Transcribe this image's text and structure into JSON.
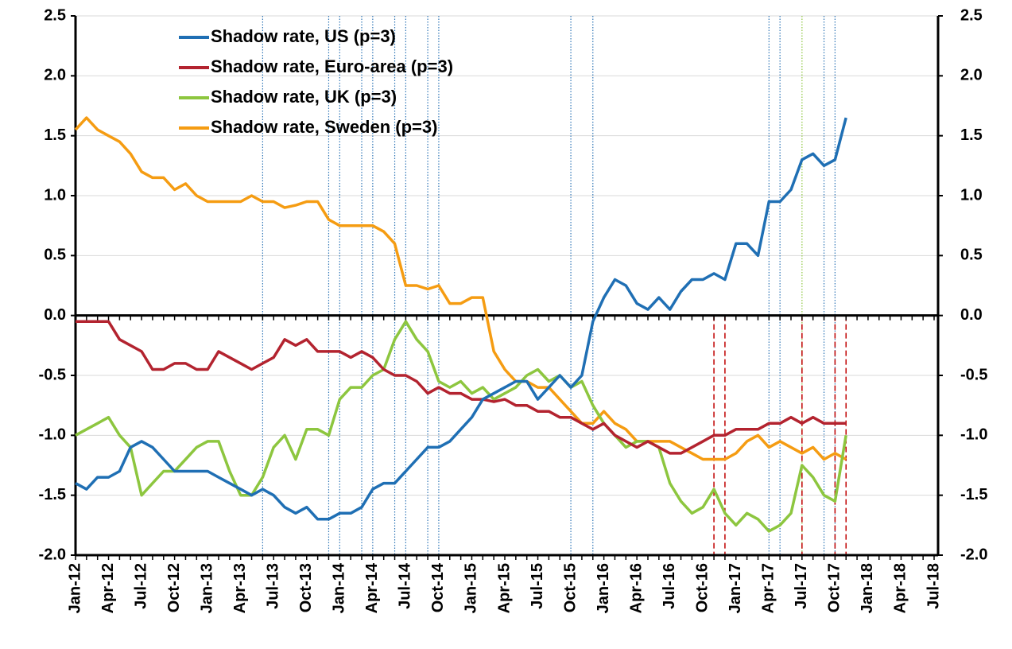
{
  "chart_data": {
    "type": "line",
    "categories": [
      "Jan-12",
      null,
      null,
      "Apr-12",
      null,
      null,
      "Jul-12",
      null,
      null,
      "Oct-12",
      null,
      null,
      "Jan-13",
      null,
      null,
      "Apr-13",
      null,
      null,
      "Jul-13",
      null,
      null,
      "Oct-13",
      null,
      null,
      "Jan-14",
      null,
      null,
      "Apr-14",
      null,
      null,
      "Jul-14",
      null,
      null,
      "Oct-14",
      null,
      null,
      "Jan-15",
      null,
      null,
      "Apr-15",
      null,
      null,
      "Jul-15",
      null,
      null,
      "Oct-15",
      null,
      null,
      "Jan-16",
      null,
      null,
      "Apr-16",
      null,
      null,
      "Jul-16",
      null,
      null,
      "Oct-16",
      null,
      null,
      "Jan-17",
      null,
      null,
      "Apr-17",
      null,
      null,
      "Jul-17",
      null,
      null,
      "Oct-17",
      null,
      null,
      "Jan-18",
      null,
      null,
      "Apr-18",
      null,
      null,
      "Jul-18"
    ],
    "series": [
      {
        "name": "Shadow rate, US (p=3)",
        "color": "#1f6fb4",
        "values": [
          -1.4,
          -1.45,
          -1.35,
          -1.35,
          -1.3,
          -1.1,
          -1.05,
          -1.1,
          -1.2,
          -1.3,
          -1.3,
          -1.3,
          -1.3,
          -1.35,
          -1.4,
          -1.45,
          -1.5,
          -1.45,
          -1.5,
          -1.6,
          -1.65,
          -1.6,
          -1.7,
          -1.7,
          -1.65,
          -1.65,
          -1.6,
          -1.45,
          -1.4,
          -1.4,
          -1.3,
          -1.2,
          -1.1,
          -1.1,
          -1.05,
          -0.95,
          -0.85,
          -0.7,
          -0.65,
          -0.6,
          -0.55,
          -0.55,
          -0.7,
          -0.6,
          -0.5,
          -0.6,
          -0.5,
          -0.05,
          0.15,
          0.3,
          0.25,
          0.1,
          0.05,
          0.15,
          0.05,
          0.2,
          0.3,
          0.3,
          0.35,
          0.3,
          0.6,
          0.6,
          0.5,
          0.95,
          0.95,
          1.05,
          1.3,
          1.35,
          1.25,
          1.3,
          1.65,
          null,
          null,
          null,
          null,
          null,
          null,
          null,
          null
        ]
      },
      {
        "name": "Shadow rate, Euro-area (p=3)",
        "color": "#b3232f",
        "values": [
          -0.05,
          -0.05,
          -0.05,
          -0.05,
          -0.2,
          -0.25,
          -0.3,
          -0.45,
          -0.45,
          -0.4,
          -0.4,
          -0.45,
          -0.45,
          -0.3,
          -0.35,
          -0.4,
          -0.45,
          -0.4,
          -0.35,
          -0.2,
          -0.25,
          -0.2,
          -0.3,
          -0.3,
          -0.3,
          -0.35,
          -0.3,
          -0.35,
          -0.45,
          -0.5,
          -0.5,
          -0.55,
          -0.65,
          -0.6,
          -0.65,
          -0.65,
          -0.7,
          -0.7,
          -0.72,
          -0.7,
          -0.75,
          -0.75,
          -0.8,
          -0.8,
          -0.85,
          -0.85,
          -0.9,
          -0.95,
          -0.9,
          -1.0,
          -1.05,
          -1.1,
          -1.05,
          -1.1,
          -1.15,
          -1.15,
          -1.1,
          -1.05,
          -1.0,
          -1.0,
          -0.95,
          -0.95,
          -0.95,
          -0.9,
          -0.9,
          -0.85,
          -0.9,
          -0.85,
          -0.9,
          -0.9,
          -0.9,
          null,
          null,
          null,
          null,
          null,
          null,
          null,
          null
        ]
      },
      {
        "name": "Shadow rate, UK (p=3)",
        "color": "#8dc63f",
        "values": [
          -1.0,
          -0.95,
          -0.9,
          -0.85,
          -1.0,
          -1.1,
          -1.5,
          -1.4,
          -1.3,
          -1.3,
          -1.2,
          -1.1,
          -1.05,
          -1.05,
          -1.3,
          -1.5,
          -1.5,
          -1.35,
          -1.1,
          -1.0,
          -1.2,
          -0.95,
          -0.95,
          -1.0,
          -0.7,
          -0.6,
          -0.6,
          -0.5,
          -0.45,
          -0.2,
          -0.05,
          -0.2,
          -0.3,
          -0.55,
          -0.6,
          -0.55,
          -0.65,
          -0.6,
          -0.7,
          -0.65,
          -0.6,
          -0.5,
          -0.45,
          -0.55,
          -0.5,
          -0.6,
          -0.55,
          -0.75,
          -0.9,
          -1.0,
          -1.1,
          -1.05,
          -1.05,
          -1.1,
          -1.4,
          -1.55,
          -1.65,
          -1.6,
          -1.45,
          -1.65,
          -1.75,
          -1.65,
          -1.7,
          -1.8,
          -1.75,
          -1.65,
          -1.25,
          -1.35,
          -1.5,
          -1.55,
          -1.0,
          null,
          null,
          null,
          null,
          null,
          null,
          null,
          null
        ]
      },
      {
        "name": "Shadow rate, Sweden (p=3)",
        "color": "#f59c12",
        "values": [
          1.55,
          1.65,
          1.55,
          1.5,
          1.45,
          1.35,
          1.2,
          1.15,
          1.15,
          1.05,
          1.1,
          1.0,
          0.95,
          0.95,
          0.95,
          0.95,
          1.0,
          0.95,
          0.95,
          0.9,
          0.92,
          0.95,
          0.95,
          0.8,
          0.75,
          0.75,
          0.75,
          0.75,
          0.7,
          0.6,
          0.25,
          0.25,
          0.22,
          0.25,
          0.1,
          0.1,
          0.15,
          0.15,
          -0.3,
          -0.45,
          -0.55,
          -0.55,
          -0.6,
          -0.6,
          -0.7,
          -0.8,
          -0.9,
          -0.9,
          -0.8,
          -0.9,
          -0.95,
          -1.05,
          -1.05,
          -1.05,
          -1.05,
          -1.1,
          -1.15,
          -1.2,
          -1.2,
          -1.2,
          -1.15,
          -1.05,
          -1.0,
          -1.1,
          -1.05,
          -1.1,
          -1.15,
          -1.1,
          -1.2,
          -1.15,
          -1.2,
          null,
          null,
          null,
          null,
          null,
          null,
          null,
          null
        ]
      }
    ],
    "ylim": [
      -2.0,
      2.5
    ],
    "yticks": [
      {
        "value": -2.0,
        "label": "-2.0"
      },
      {
        "value": -1.5,
        "label": "-1.5"
      },
      {
        "value": -1.0,
        "label": "-1.0"
      },
      {
        "value": -0.5,
        "label": "-0.5"
      },
      {
        "value": 0,
        "label": "0.0"
      },
      {
        "value": 0.5,
        "label": "0.5"
      },
      {
        "value": 1.0,
        "label": "1.0"
      },
      {
        "value": 1.5,
        "label": "1.5"
      },
      {
        "value": 2.0,
        "label": "2.0"
      },
      {
        "value": 2.5,
        "label": "2.5"
      }
    ],
    "y2lim": [
      -2.0,
      2.5
    ],
    "y2ticks": [
      {
        "value": -2.0,
        "label": "-2.0"
      },
      {
        "value": -1.5,
        "label": "-1.5"
      },
      {
        "value": -1.0,
        "label": "-1.0"
      },
      {
        "value": -0.5,
        "label": "-0.5"
      },
      {
        "value": 0,
        "label": "0.0"
      },
      {
        "value": 0.5,
        "label": "0.5"
      },
      {
        "value": 1.0,
        "label": "1.0"
      },
      {
        "value": 1.5,
        "label": "1.5"
      },
      {
        "value": 2.0,
        "label": "2.0"
      },
      {
        "value": 2.5,
        "label": "2.5"
      }
    ],
    "grid": true,
    "legend": "upper left",
    "event_lines": [
      {
        "x": "Jun-13",
        "color": "#2e75b6",
        "style": "dotted"
      },
      {
        "x": "Dec-13",
        "color": "#2e75b6",
        "style": "dotted"
      },
      {
        "x": "Jan-14",
        "color": "#2e75b6",
        "style": "dotted"
      },
      {
        "x": "Mar-14",
        "color": "#2e75b6",
        "style": "dotted"
      },
      {
        "x": "Apr-14",
        "color": "#2e75b6",
        "style": "dotted"
      },
      {
        "x": "Jun-14",
        "color": "#2e75b6",
        "style": "dotted"
      },
      {
        "x": "Jul-14",
        "color": "#2e75b6",
        "style": "dotted"
      },
      {
        "x": "Sep-14",
        "color": "#2e75b6",
        "style": "dotted"
      },
      {
        "x": "Oct-14",
        "color": "#2e75b6",
        "style": "dotted"
      },
      {
        "x": "Oct-15",
        "color": "#2e75b6",
        "style": "dotted"
      },
      {
        "x": "Dec-15",
        "color": "#2e75b6",
        "style": "dotted"
      },
      {
        "x": "Apr-17",
        "color": "#2e75b6",
        "style": "dotted"
      },
      {
        "x": "May-17",
        "color": "#2e75b6",
        "style": "dotted"
      },
      {
        "x": "Jul-17",
        "color": "#8dc63f",
        "style": "dotted"
      },
      {
        "x": "Sep-17",
        "color": "#2e75b6",
        "style": "dotted"
      },
      {
        "x": "Oct-17",
        "color": "#2e75b6",
        "style": "dotted"
      },
      {
        "x": "Nov-16",
        "color": "#c00000",
        "style": "dashed"
      },
      {
        "x": "Dec-16",
        "color": "#c00000",
        "style": "dashed"
      },
      {
        "x": "Jul-17",
        "color": "#c00000",
        "style": "dashed"
      },
      {
        "x": "Oct-17",
        "color": "#c00000",
        "style": "dashed"
      },
      {
        "x": "Nov-17",
        "color": "#c00000",
        "style": "dashed"
      }
    ]
  }
}
